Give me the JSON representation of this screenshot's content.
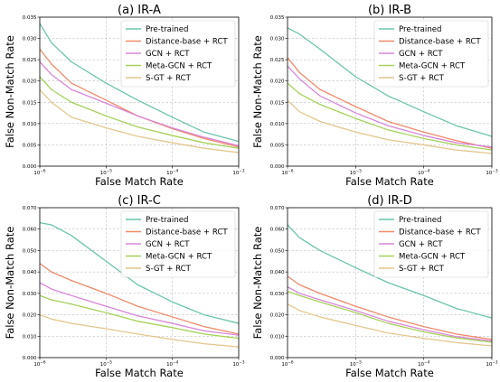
{
  "colors": {
    "pretrained": "#6cc4ad",
    "distance": "#f08a6a",
    "gcn": "#d987d9",
    "metagcn": "#a6d15a",
    "sgt": "#e3c78e"
  },
  "chart_data": [
    {
      "type": "line",
      "title": "(a) IR-A",
      "xlabel": "False Match Rate",
      "ylabel": "False Non-Match Rate",
      "xscale": "log",
      "xlim": [
        1e-06,
        0.001
      ],
      "ylim": [
        0,
        0.035
      ],
      "xticks": [
        {
          "v": 1e-06,
          "base": "10",
          "exp": "−6"
        },
        {
          "v": 1e-05,
          "base": "10",
          "exp": "−5"
        },
        {
          "v": 0.0001,
          "base": "10",
          "exp": "−4"
        },
        {
          "v": 0.001,
          "base": "10",
          "exp": "−3"
        }
      ],
      "yticks": [
        {
          "v": 0,
          "label": "0.000"
        },
        {
          "v": 0.005,
          "label": "0.005"
        },
        {
          "v": 0.01,
          "label": "0.010"
        },
        {
          "v": 0.015,
          "label": "0.015"
        },
        {
          "v": 0.02,
          "label": "0.020"
        },
        {
          "v": 0.025,
          "label": "0.025"
        },
        {
          "v": 0.03,
          "label": "0.030"
        },
        {
          "v": 0.035,
          "label": "0.035"
        }
      ],
      "grid": true,
      "legend": "top-right",
      "series": [
        {
          "name": "Pre-trained",
          "color": "pretrained",
          "x": [
            1e-06,
            1.5e-06,
            3e-06,
            1e-05,
            3e-05,
            0.0001,
            0.0003,
            0.001
          ],
          "y": [
            0.0335,
            0.029,
            0.0245,
            0.0195,
            0.0155,
            0.0115,
            0.008,
            0.0058
          ]
        },
        {
          "name": "Distance-base + RCT",
          "color": "distance",
          "x": [
            1e-06,
            1.5e-06,
            3e-06,
            1e-05,
            3e-05,
            0.0001,
            0.0003,
            0.001
          ],
          "y": [
            0.0275,
            0.024,
            0.0195,
            0.0155,
            0.0118,
            0.0088,
            0.0065,
            0.0045
          ]
        },
        {
          "name": "GCN + RCT",
          "color": "gcn",
          "x": [
            1e-06,
            1.5e-06,
            3e-06,
            1e-05,
            3e-05,
            0.0001,
            0.0003,
            0.001
          ],
          "y": [
            0.0245,
            0.0215,
            0.018,
            0.0148,
            0.0118,
            0.009,
            0.0068,
            0.0048
          ]
        },
        {
          "name": "Meta-GCN + RCT",
          "color": "metagcn",
          "x": [
            1e-06,
            1.5e-06,
            3e-06,
            1e-05,
            3e-05,
            0.0001,
            0.0003,
            0.001
          ],
          "y": [
            0.021,
            0.018,
            0.015,
            0.0118,
            0.0092,
            0.0072,
            0.0055,
            0.0042
          ]
        },
        {
          "name": "S-GT + RCT",
          "color": "sgt",
          "x": [
            1e-06,
            1.5e-06,
            3e-06,
            1e-05,
            3e-05,
            0.0001,
            0.0003,
            0.001
          ],
          "y": [
            0.018,
            0.015,
            0.0115,
            0.009,
            0.007,
            0.0055,
            0.0042,
            0.0032
          ]
        }
      ]
    },
    {
      "type": "line",
      "title": "(b) IR-B",
      "xlabel": "False Match Rate",
      "ylabel": "False Non-Match Rate",
      "xscale": "log",
      "xlim": [
        1e-06,
        0.001
      ],
      "ylim": [
        0,
        0.035
      ],
      "xticks": [
        {
          "v": 1e-06,
          "base": "10",
          "exp": "−6"
        },
        {
          "v": 1e-05,
          "base": "10",
          "exp": "−5"
        },
        {
          "v": 0.0001,
          "base": "10",
          "exp": "−4"
        },
        {
          "v": 0.001,
          "base": "10",
          "exp": "−3"
        }
      ],
      "yticks": [
        {
          "v": 0,
          "label": "0.000"
        },
        {
          "v": 0.005,
          "label": "0.005"
        },
        {
          "v": 0.01,
          "label": "0.010"
        },
        {
          "v": 0.015,
          "label": "0.015"
        },
        {
          "v": 0.02,
          "label": "0.020"
        },
        {
          "v": 0.025,
          "label": "0.025"
        },
        {
          "v": 0.03,
          "label": "0.030"
        },
        {
          "v": 0.035,
          "label": "0.035"
        }
      ],
      "grid": true,
      "legend": "top-right",
      "series": [
        {
          "name": "Pre-trained",
          "color": "pretrained",
          "x": [
            1e-06,
            1.5e-06,
            3e-06,
            1e-05,
            3e-05,
            0.0001,
            0.0003,
            0.001
          ],
          "y": [
            0.0325,
            0.031,
            0.0275,
            0.021,
            0.0165,
            0.0128,
            0.0095,
            0.007
          ]
        },
        {
          "name": "Distance-base + RCT",
          "color": "distance",
          "x": [
            1e-06,
            1.5e-06,
            3e-06,
            1e-05,
            3e-05,
            0.0001,
            0.0003,
            0.001
          ],
          "y": [
            0.0255,
            0.022,
            0.018,
            0.014,
            0.0105,
            0.008,
            0.006,
            0.0042
          ]
        },
        {
          "name": "GCN + RCT",
          "color": "gcn",
          "x": [
            1e-06,
            1.5e-06,
            3e-06,
            1e-05,
            3e-05,
            0.0001,
            0.0003,
            0.001
          ],
          "y": [
            0.0235,
            0.0205,
            0.0165,
            0.0125,
            0.0095,
            0.0072,
            0.0055,
            0.0045
          ]
        },
        {
          "name": "Meta-GCN + RCT",
          "color": "metagcn",
          "x": [
            1e-06,
            1.5e-06,
            3e-06,
            1e-05,
            3e-05,
            0.0001,
            0.0003,
            0.001
          ],
          "y": [
            0.0195,
            0.017,
            0.0145,
            0.0112,
            0.0085,
            0.0065,
            0.005,
            0.0038
          ]
        },
        {
          "name": "S-GT + RCT",
          "color": "sgt",
          "x": [
            1e-06,
            1.5e-06,
            3e-06,
            1e-05,
            3e-05,
            0.0001,
            0.0003,
            0.001
          ],
          "y": [
            0.0155,
            0.0128,
            0.0105,
            0.008,
            0.0062,
            0.005,
            0.0038,
            0.003
          ]
        }
      ]
    },
    {
      "type": "line",
      "title": "(c) IR-C",
      "xlabel": "False Match Rate",
      "ylabel": "False Non-Match Rate",
      "xscale": "log",
      "xlim": [
        1e-06,
        0.001
      ],
      "ylim": [
        0,
        0.07
      ],
      "xticks": [
        {
          "v": 1e-06,
          "base": "10",
          "exp": "−6"
        },
        {
          "v": 1e-05,
          "base": "10",
          "exp": "−5"
        },
        {
          "v": 0.0001,
          "base": "10",
          "exp": "−4"
        },
        {
          "v": 0.001,
          "base": "10",
          "exp": "−3"
        }
      ],
      "yticks": [
        {
          "v": 0,
          "label": "0.000"
        },
        {
          "v": 0.01,
          "label": "0.010"
        },
        {
          "v": 0.02,
          "label": "0.020"
        },
        {
          "v": 0.03,
          "label": "0.030"
        },
        {
          "v": 0.04,
          "label": "0.040"
        },
        {
          "v": 0.05,
          "label": "0.050"
        },
        {
          "v": 0.06,
          "label": "0.060"
        },
        {
          "v": 0.07,
          "label": "0.070"
        }
      ],
      "grid": true,
      "legend": "top-right",
      "series": [
        {
          "name": "Pre-trained",
          "color": "pretrained",
          "x": [
            1e-06,
            1.5e-06,
            3e-06,
            1e-05,
            3e-05,
            0.0001,
            0.0003,
            0.001
          ],
          "y": [
            0.063,
            0.062,
            0.057,
            0.045,
            0.034,
            0.026,
            0.02,
            0.016
          ]
        },
        {
          "name": "Distance-base + RCT",
          "color": "distance",
          "x": [
            1e-06,
            1.5e-06,
            3e-06,
            1e-05,
            3e-05,
            0.0001,
            0.0003,
            0.001
          ],
          "y": [
            0.044,
            0.04,
            0.036,
            0.03,
            0.024,
            0.019,
            0.0145,
            0.011
          ]
        },
        {
          "name": "GCN + RCT",
          "color": "gcn",
          "x": [
            1e-06,
            1.5e-06,
            3e-06,
            1e-05,
            3e-05,
            0.0001,
            0.0003,
            0.001
          ],
          "y": [
            0.035,
            0.032,
            0.029,
            0.024,
            0.0195,
            0.016,
            0.0125,
            0.0105
          ]
        },
        {
          "name": "Meta-GCN + RCT",
          "color": "metagcn",
          "x": [
            1e-06,
            1.5e-06,
            3e-06,
            1e-05,
            3e-05,
            0.0001,
            0.0003,
            0.001
          ],
          "y": [
            0.029,
            0.027,
            0.025,
            0.021,
            0.017,
            0.014,
            0.011,
            0.009
          ]
        },
        {
          "name": "S-GT + RCT",
          "color": "sgt",
          "x": [
            1e-06,
            1.5e-06,
            3e-06,
            1e-05,
            3e-05,
            0.0001,
            0.0003,
            0.001
          ],
          "y": [
            0.02,
            0.018,
            0.016,
            0.0135,
            0.011,
            0.0085,
            0.0065,
            0.005
          ]
        }
      ]
    },
    {
      "type": "line",
      "title": "(d) IR-D",
      "xlabel": "False Match Rate",
      "ylabel": "False Non-Match Rate",
      "xscale": "log",
      "xlim": [
        1e-06,
        0.001
      ],
      "ylim": [
        0,
        0.07
      ],
      "xticks": [
        {
          "v": 1e-06,
          "base": "10",
          "exp": "−6"
        },
        {
          "v": 1e-05,
          "base": "10",
          "exp": "−5"
        },
        {
          "v": 0.0001,
          "base": "10",
          "exp": "−4"
        },
        {
          "v": 0.001,
          "base": "10",
          "exp": "−3"
        }
      ],
      "yticks": [
        {
          "v": 0,
          "label": "0.000"
        },
        {
          "v": 0.01,
          "label": "0.010"
        },
        {
          "v": 0.02,
          "label": "0.020"
        },
        {
          "v": 0.03,
          "label": "0.030"
        },
        {
          "v": 0.04,
          "label": "0.040"
        },
        {
          "v": 0.05,
          "label": "0.050"
        },
        {
          "v": 0.06,
          "label": "0.060"
        },
        {
          "v": 0.07,
          "label": "0.070"
        }
      ],
      "grid": true,
      "legend": "top-right",
      "series": [
        {
          "name": "Pre-trained",
          "color": "pretrained",
          "x": [
            1e-06,
            1.5e-06,
            3e-06,
            1e-05,
            3e-05,
            0.0001,
            0.0003,
            0.001
          ],
          "y": [
            0.062,
            0.056,
            0.05,
            0.042,
            0.035,
            0.029,
            0.023,
            0.0185
          ]
        },
        {
          "name": "Distance-base + RCT",
          "color": "distance",
          "x": [
            1e-06,
            1.5e-06,
            3e-06,
            1e-05,
            3e-05,
            0.0001,
            0.0003,
            0.001
          ],
          "y": [
            0.038,
            0.034,
            0.03,
            0.024,
            0.019,
            0.0145,
            0.011,
            0.0085
          ]
        },
        {
          "name": "GCN + RCT",
          "color": "gcn",
          "x": [
            1e-06,
            1.5e-06,
            3e-06,
            1e-05,
            3e-05,
            0.0001,
            0.0003,
            0.001
          ],
          "y": [
            0.033,
            0.03,
            0.027,
            0.022,
            0.017,
            0.013,
            0.0098,
            0.0078
          ]
        },
        {
          "name": "Meta-GCN + RCT",
          "color": "metagcn",
          "x": [
            1e-06,
            1.5e-06,
            3e-06,
            1e-05,
            3e-05,
            0.0001,
            0.0003,
            0.001
          ],
          "y": [
            0.031,
            0.029,
            0.026,
            0.021,
            0.016,
            0.012,
            0.0092,
            0.0072
          ]
        },
        {
          "name": "S-GT + RCT",
          "color": "sgt",
          "x": [
            1e-06,
            1.5e-06,
            3e-06,
            1e-05,
            3e-05,
            0.0001,
            0.0003,
            0.001
          ],
          "y": [
            0.025,
            0.022,
            0.019,
            0.015,
            0.0115,
            0.009,
            0.007,
            0.0055
          ]
        }
      ]
    }
  ]
}
